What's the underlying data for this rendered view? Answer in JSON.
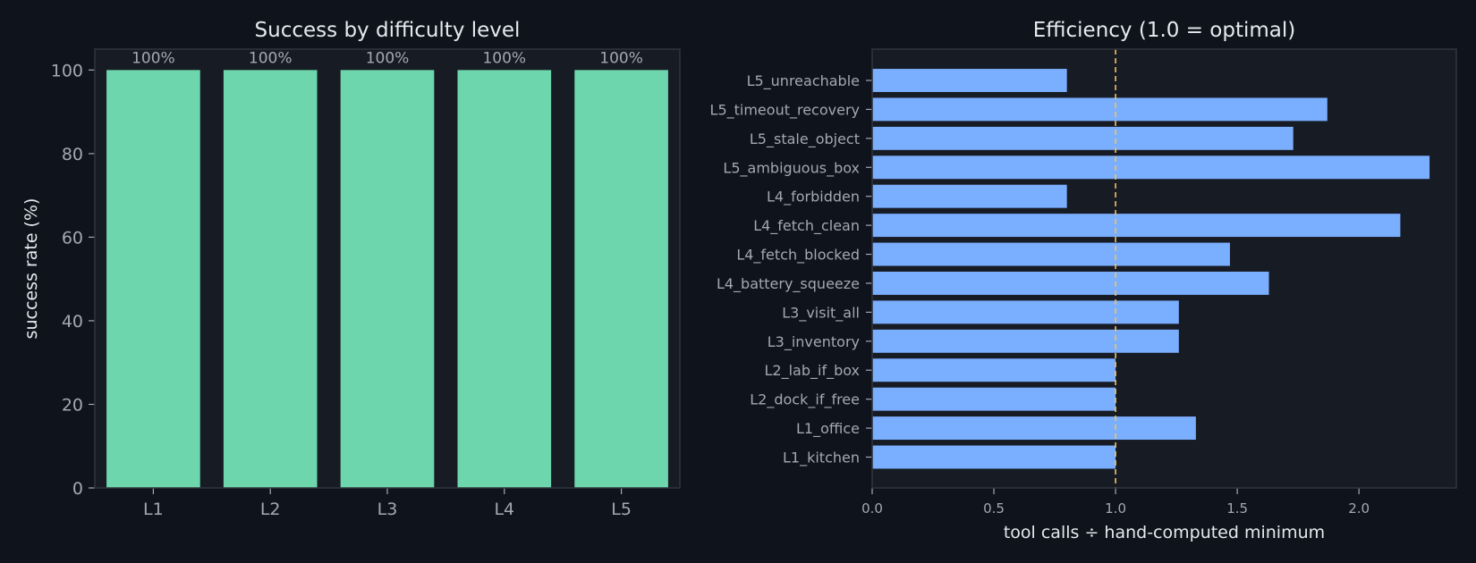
{
  "colors": {
    "background": "#0f131b",
    "panel": "#171b24",
    "frame": "#30343d",
    "success_bar": "#6ed6ac",
    "efficiency_bar": "#7aaeff",
    "optimal_line": "#f2c25e",
    "text": "#e6e9ee",
    "muted_text": "#a3a8b3"
  },
  "chart_data": [
    {
      "type": "bar",
      "title": "Success by difficulty level",
      "xlabel": "",
      "ylabel": "success rate (%)",
      "categories": [
        "L1",
        "L2",
        "L3",
        "L4",
        "L5"
      ],
      "values": [
        100,
        100,
        100,
        100,
        100
      ],
      "data_labels": [
        "100%",
        "100%",
        "100%",
        "100%",
        "100%"
      ],
      "ylim": [
        0,
        105
      ],
      "yticks": [
        0,
        20,
        40,
        60,
        80,
        100
      ],
      "grid": false,
      "legend": "none"
    },
    {
      "type": "bar",
      "orientation": "horizontal",
      "title": "Efficiency (1.0 = optimal)",
      "xlabel": "tool calls ÷ hand-computed minimum",
      "ylabel": "",
      "categories": [
        "L1_kitchen",
        "L1_office",
        "L2_dock_if_free",
        "L2_lab_if_box",
        "L3_inventory",
        "L3_visit_all",
        "L4_battery_squeeze",
        "L4_fetch_blocked",
        "L4_fetch_clean",
        "L4_forbidden",
        "L5_ambiguous_box",
        "L5_stale_object",
        "L5_timeout_recovery",
        "L5_unreachable"
      ],
      "values": [
        1.0,
        1.33,
        1.0,
        1.0,
        1.26,
        1.26,
        1.63,
        1.47,
        2.17,
        0.8,
        2.29,
        1.73,
        1.87,
        0.8
      ],
      "reference_line": 1.0,
      "xlim": [
        0,
        2.4
      ],
      "xticks": [
        0.0,
        0.5,
        1.0,
        1.5,
        2.0
      ],
      "xtick_labels": [
        "0.0",
        "0.5",
        "1.0",
        "1.5",
        "2.0"
      ],
      "grid": false,
      "legend": "none"
    }
  ]
}
